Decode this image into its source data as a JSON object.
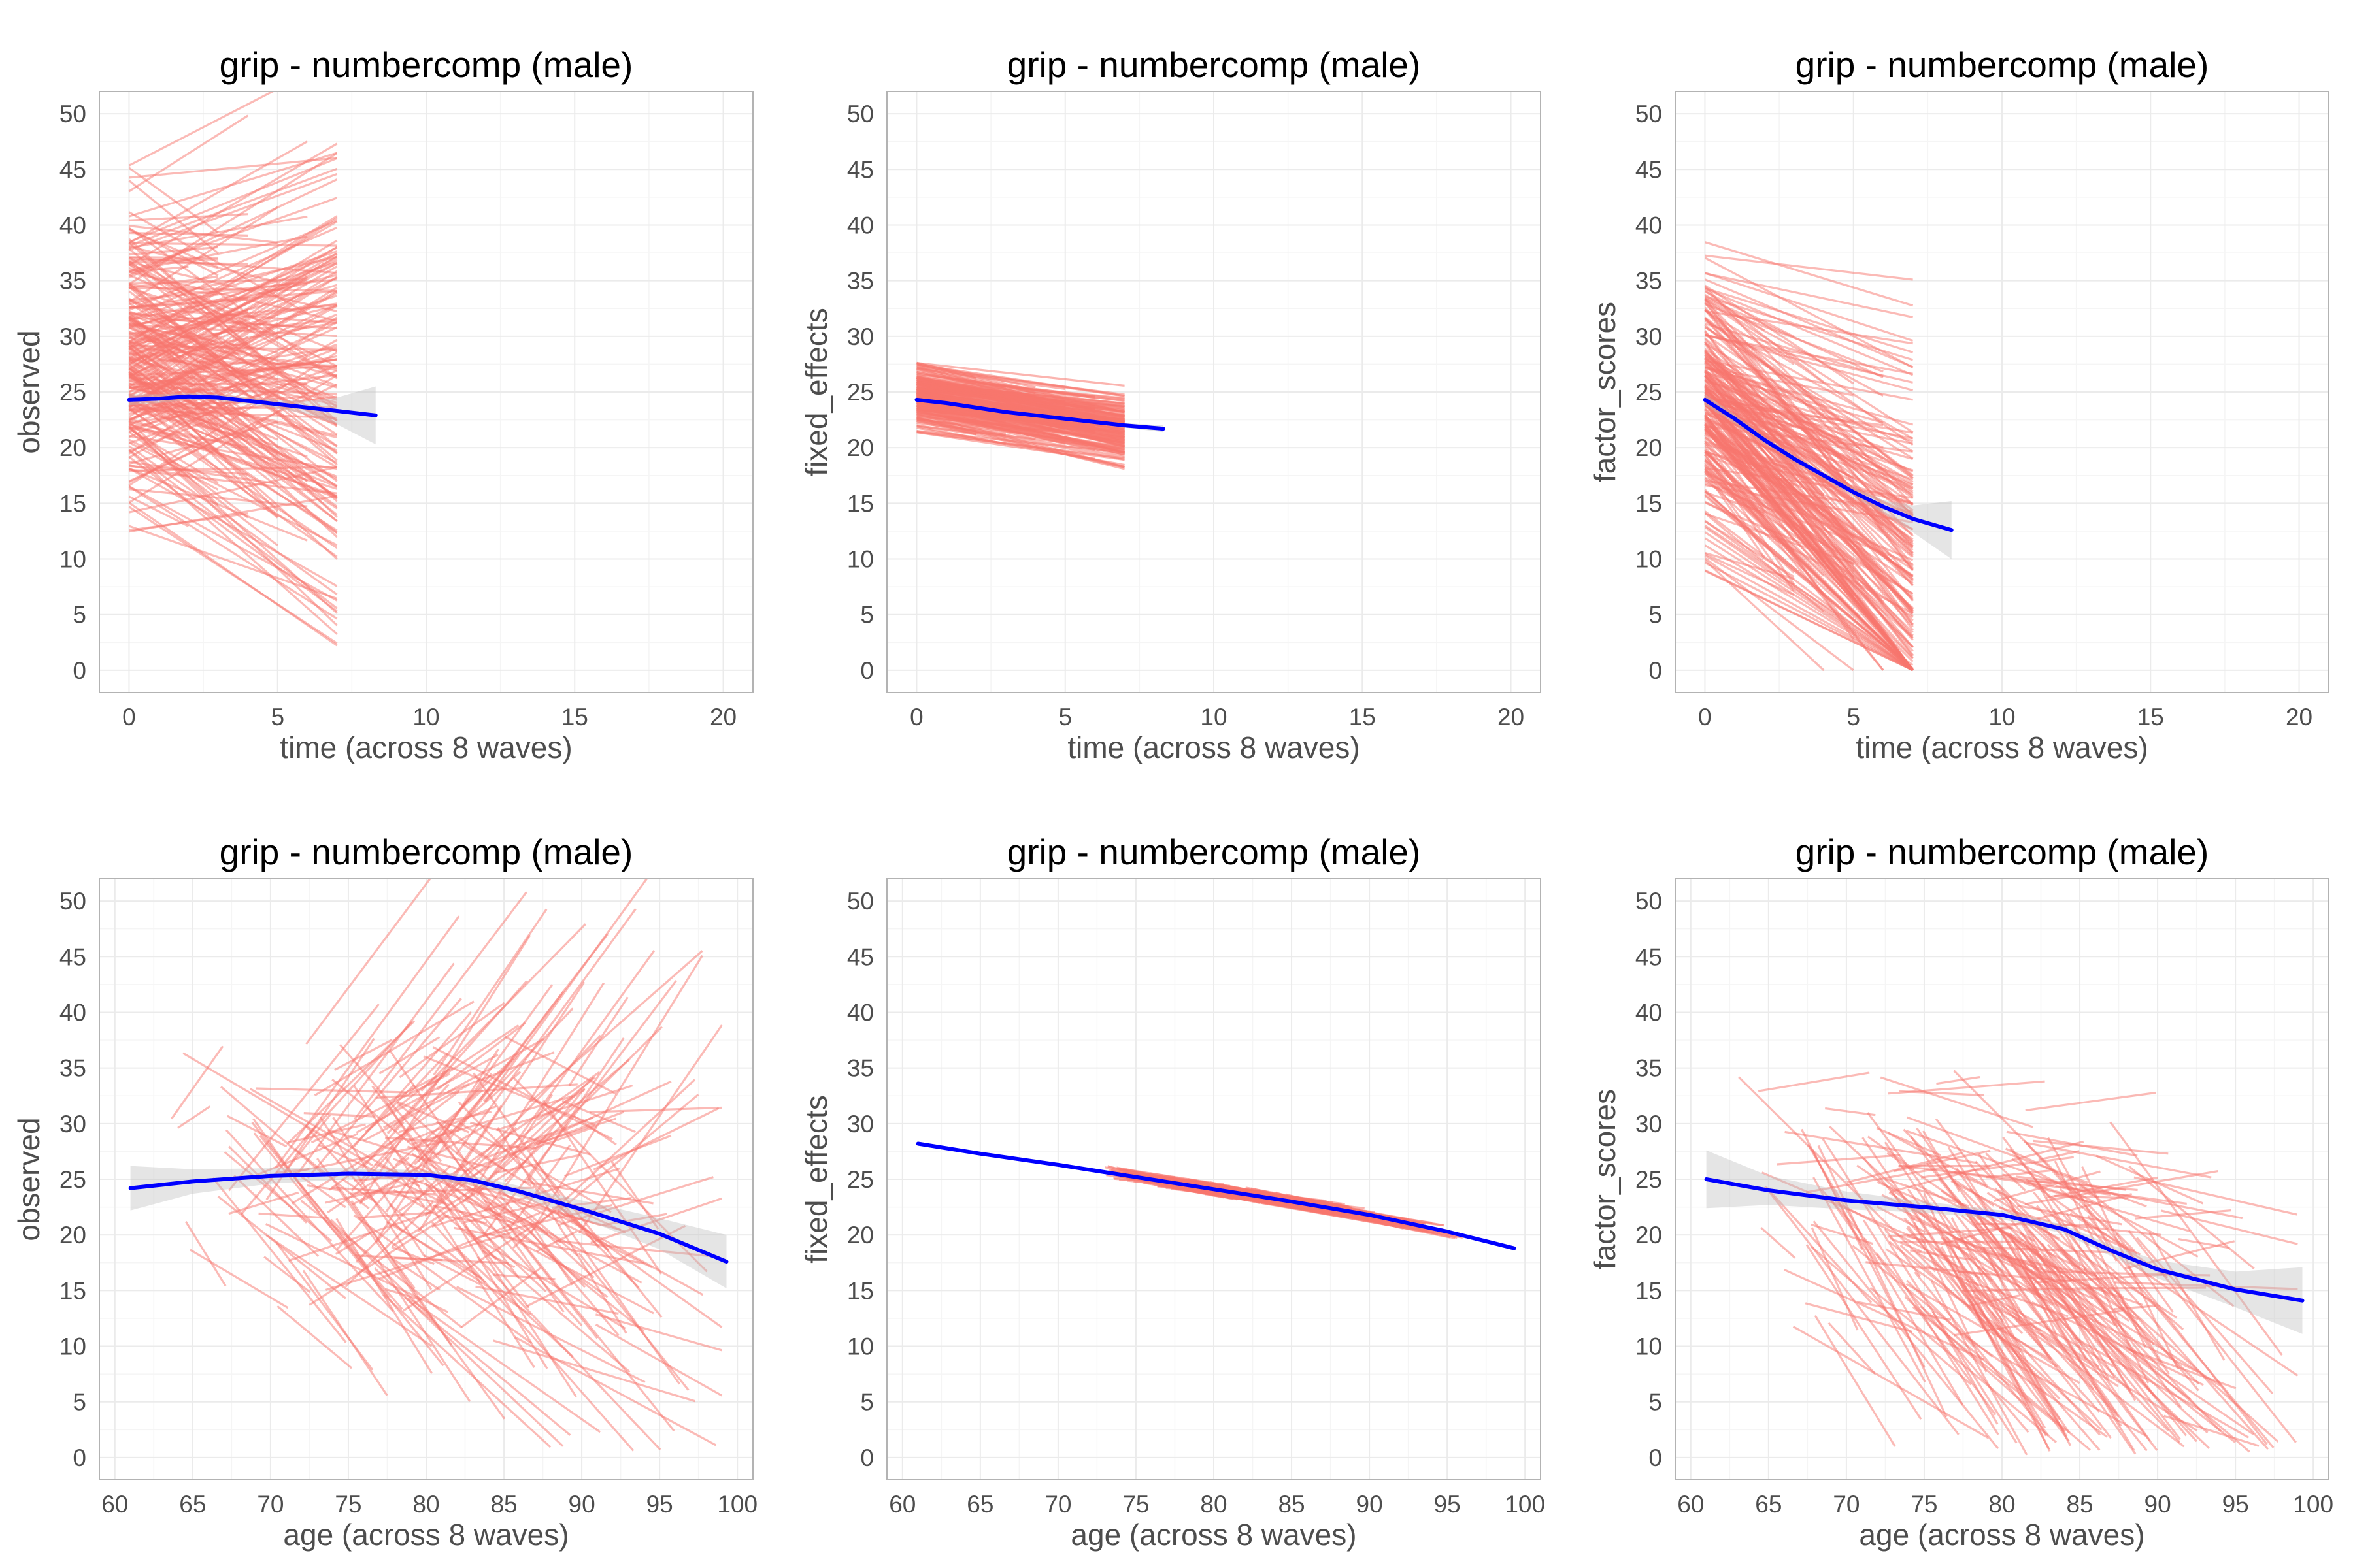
{
  "colors": {
    "individual_lines": "#F8766D",
    "smooth_line": "#0000FF",
    "ribbon": "#BDBDBD",
    "grid": "#EBEBEB",
    "panel_border": "#B3B3B3",
    "tick_text": "#4D4D4D",
    "axis_title": "#4D4D4D"
  },
  "chart_data": [
    {
      "type": "line",
      "title": "grip - numbercomp (male)",
      "xlabel": "time (across 8 waves)",
      "ylabel": "observed",
      "xlim": [
        -1,
        21
      ],
      "ylim": [
        -2,
        52
      ],
      "xticks": [
        0,
        5,
        10,
        15,
        20
      ],
      "yticks": [
        0,
        5,
        10,
        15,
        20,
        25,
        30,
        35,
        40,
        45,
        50
      ],
      "grid": true,
      "legend": "none",
      "individual_trajectories": {
        "approx_count": 260,
        "x_range": [
          0,
          7
        ],
        "intercept_range": [
          8,
          48
        ],
        "slope_range": [
          -2.6,
          1.8
        ]
      },
      "series": [
        {
          "values": [
            [
              0,
              24.3
            ],
            [
              1,
              24.4
            ],
            [
              2,
              24.6
            ],
            [
              3,
              24.5
            ],
            [
              4,
              24.2
            ],
            [
              5,
              23.9
            ],
            [
              6,
              23.6
            ],
            [
              7,
              23.3
            ],
            [
              8.3,
              22.9
            ]
          ],
          "ci_halfwidth": [
            0.5,
            0.4,
            0.3,
            0.3,
            0.3,
            0.4,
            0.6,
            1.2,
            2.6
          ]
        }
      ]
    },
    {
      "type": "line",
      "title": "grip - numbercomp (male)",
      "xlabel": "time (across 8 waves)",
      "ylabel": "fixed_effects",
      "xlim": [
        -1,
        21
      ],
      "ylim": [
        -2,
        52
      ],
      "xticks": [
        0,
        5,
        10,
        15,
        20
      ],
      "yticks": [
        0,
        5,
        10,
        15,
        20,
        25,
        30,
        35,
        40,
        45,
        50
      ],
      "grid": true,
      "legend": "none",
      "individual_trajectories": {
        "approx_count": 220,
        "x_range": [
          0,
          7
        ],
        "intercept_range": [
          21,
          28.5
        ],
        "slope_range": [
          -0.6,
          -0.2
        ]
      },
      "series": [
        {
          "values": [
            [
              0,
              24.3
            ],
            [
              1,
              24.0
            ],
            [
              2,
              23.6
            ],
            [
              3,
              23.2
            ],
            [
              4,
              22.9
            ],
            [
              5,
              22.6
            ],
            [
              6,
              22.3
            ],
            [
              7,
              22.0
            ],
            [
              8.3,
              21.7
            ]
          ],
          "ci_halfwidth": [
            0.1,
            0.1,
            0.1,
            0.1,
            0.1,
            0.1,
            0.1,
            0.2,
            0.3
          ]
        }
      ]
    },
    {
      "type": "line",
      "title": "grip - numbercomp (male)",
      "xlabel": "time (across 8 waves)",
      "ylabel": "factor_scores",
      "xlim": [
        -1,
        21
      ],
      "ylim": [
        -2,
        52
      ],
      "xticks": [
        0,
        5,
        10,
        15,
        20
      ],
      "yticks": [
        0,
        5,
        10,
        15,
        20,
        25,
        30,
        35,
        40,
        45,
        50
      ],
      "grid": true,
      "legend": "none",
      "individual_trajectories": {
        "approx_count": 260,
        "x_range": [
          0,
          7
        ],
        "intercept_range": [
          5,
          42
        ],
        "slope_range": [
          -4.2,
          -0.3
        ]
      },
      "series": [
        {
          "values": [
            [
              0,
              24.3
            ],
            [
              1,
              22.6
            ],
            [
              2,
              20.7
            ],
            [
              3,
              19.0
            ],
            [
              4,
              17.5
            ],
            [
              5,
              16.0
            ],
            [
              6,
              14.7
            ],
            [
              7,
              13.6
            ],
            [
              8.3,
              12.6
            ]
          ],
          "ci_halfwidth": [
            0.5,
            0.4,
            0.3,
            0.3,
            0.3,
            0.4,
            0.6,
            1.2,
            2.6
          ]
        }
      ]
    },
    {
      "type": "line",
      "title": "grip - numbercomp (male)",
      "xlabel": "age (across 8 waves)",
      "ylabel": "observed",
      "xlim": [
        59,
        101
      ],
      "ylim": [
        -2,
        52
      ],
      "xticks": [
        60,
        65,
        70,
        75,
        80,
        85,
        90,
        95,
        100
      ],
      "yticks": [
        0,
        5,
        10,
        15,
        20,
        25,
        30,
        35,
        40,
        45,
        50
      ],
      "grid": true,
      "legend": "none",
      "individual_trajectories": {
        "approx_count": 260,
        "x_range": [
          61,
          99
        ],
        "intercept_range": [
          4,
          48
        ],
        "slope_range": [
          -5,
          5
        ]
      },
      "series": [
        {
          "values": [
            [
              61,
              24.2
            ],
            [
              65,
              24.8
            ],
            [
              70,
              25.3
            ],
            [
              75,
              25.5
            ],
            [
              80,
              25.4
            ],
            [
              83,
              24.9
            ],
            [
              86,
              23.9
            ],
            [
              90,
              22.3
            ],
            [
              95,
              20.1
            ],
            [
              99.3,
              17.6
            ]
          ],
          "ci_halfwidth": [
            2.0,
            1.1,
            0.7,
            0.5,
            0.4,
            0.4,
            0.5,
            0.8,
            1.4,
            2.4
          ]
        }
      ]
    },
    {
      "type": "line",
      "title": "grip - numbercomp (male)",
      "xlabel": "age (across 8 waves)",
      "ylabel": "fixed_effects",
      "xlim": [
        59,
        101
      ],
      "ylim": [
        -2,
        52
      ],
      "xticks": [
        60,
        65,
        70,
        75,
        80,
        85,
        90,
        95,
        100
      ],
      "yticks": [
        0,
        5,
        10,
        15,
        20,
        25,
        30,
        35,
        40,
        45,
        50
      ],
      "grid": true,
      "legend": "none",
      "individual_trajectories": {
        "approx_count": 200,
        "x_range": [
          73,
          96
        ],
        "band": "narrow band around fitted line"
      },
      "series": [
        {
          "values": [
            [
              61,
              28.2
            ],
            [
              65,
              27.3
            ],
            [
              70,
              26.3
            ],
            [
              75,
              25.2
            ],
            [
              80,
              24.1
            ],
            [
              85,
              23.0
            ],
            [
              90,
              21.8
            ],
            [
              95,
              20.3
            ],
            [
              99.3,
              18.8
            ]
          ],
          "ci_halfwidth": [
            0.1,
            0.1,
            0.1,
            0.1,
            0.1,
            0.1,
            0.1,
            0.1,
            0.2
          ]
        }
      ]
    },
    {
      "type": "line",
      "title": "grip - numbercomp (male)",
      "xlabel": "age (across 8 waves)",
      "ylabel": "factor_scores",
      "xlim": [
        59,
        101
      ],
      "ylim": [
        -2,
        52
      ],
      "xticks": [
        60,
        65,
        70,
        75,
        80,
        85,
        90,
        95,
        100
      ],
      "yticks": [
        0,
        5,
        10,
        15,
        20,
        25,
        30,
        35,
        40,
        45,
        50
      ],
      "grid": true,
      "legend": "none",
      "individual_trajectories": {
        "approx_count": 260,
        "x_range": [
          61,
          99
        ],
        "intercept_range": [
          0,
          42
        ],
        "slope_range": [
          -7,
          1
        ]
      },
      "series": [
        {
          "values": [
            [
              61,
              25.0
            ],
            [
              65,
              24.0
            ],
            [
              70,
              23.1
            ],
            [
              75,
              22.5
            ],
            [
              80,
              21.8
            ],
            [
              84,
              20.5
            ],
            [
              87,
              18.6
            ],
            [
              90,
              16.9
            ],
            [
              95,
              15.1
            ],
            [
              99.3,
              14.1
            ]
          ],
          "ci_halfwidth": [
            2.6,
            1.3,
            0.8,
            0.5,
            0.4,
            0.4,
            0.5,
            0.8,
            1.6,
            3.0
          ]
        }
      ]
    }
  ]
}
